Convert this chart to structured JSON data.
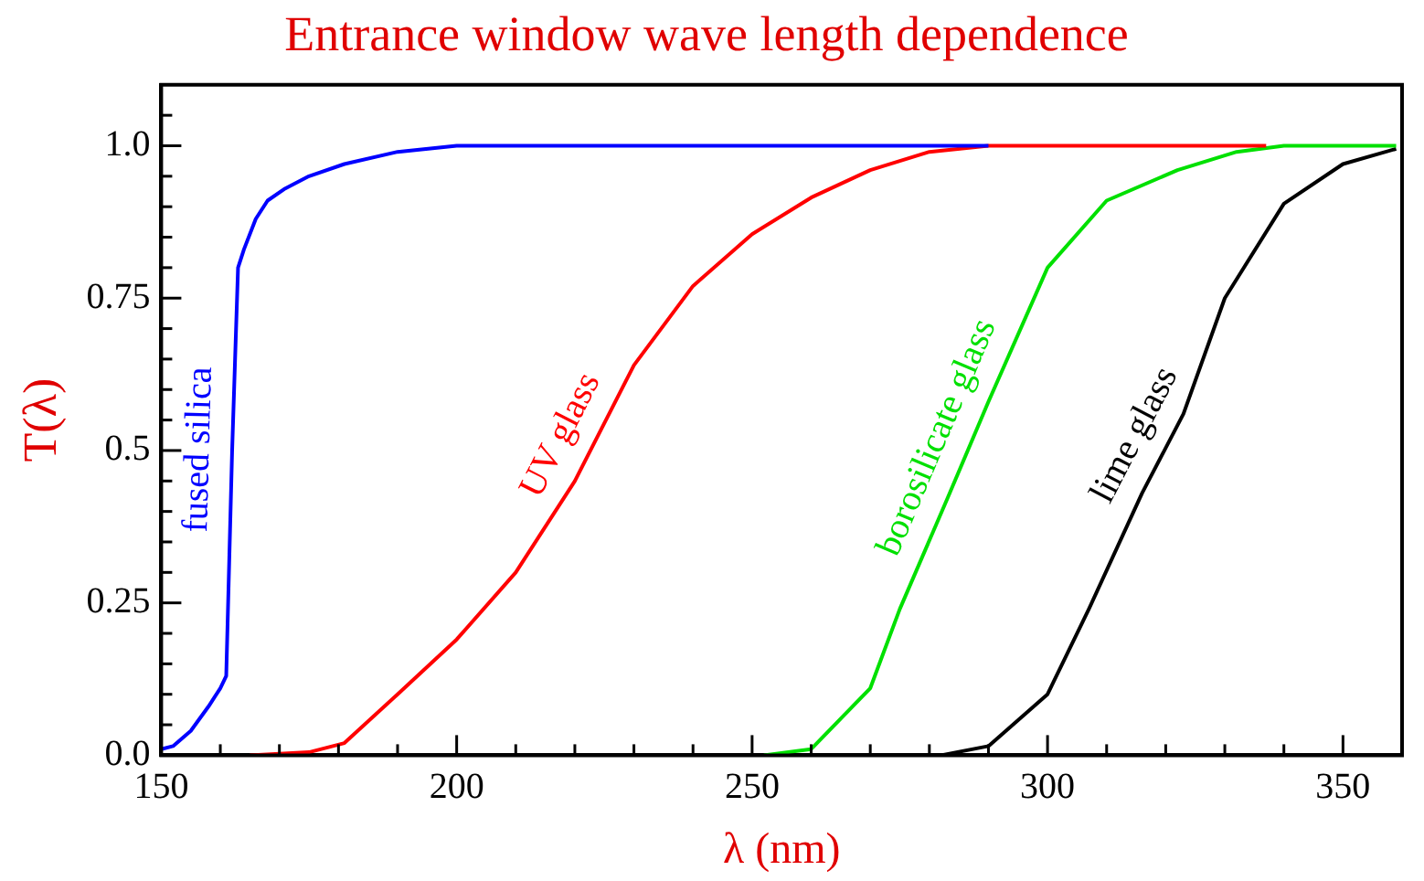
{
  "chart_data": {
    "type": "line",
    "title": "Entrance window wave length dependence",
    "xlabel": "λ (nm)",
    "ylabel": "T(λ)",
    "xlim": [
      150,
      360
    ],
    "ylim": [
      0,
      1.1
    ],
    "xticks": [
      150,
      {
        "value": 160,
        "label": null
      },
      {
        "value": 170,
        "label": null
      },
      {
        "value": 180,
        "label": null
      },
      {
        "value": 190,
        "label": null
      },
      200,
      {
        "value": 210,
        "label": null
      },
      {
        "value": 220,
        "label": null
      },
      {
        "value": 230,
        "label": null
      },
      {
        "value": 240,
        "label": null
      },
      250,
      {
        "value": 260,
        "label": null
      },
      {
        "value": 270,
        "label": null
      },
      {
        "value": 280,
        "label": null
      },
      {
        "value": 290,
        "label": null
      },
      300,
      {
        "value": 310,
        "label": null
      },
      {
        "value": 320,
        "label": null
      },
      {
        "value": 330,
        "label": null
      },
      {
        "value": 340,
        "label": null
      },
      350
    ],
    "yticks": [
      {
        "value": 0,
        "label": "0.0"
      },
      {
        "value": 0.05,
        "label": null
      },
      {
        "value": 0.1,
        "label": null
      },
      {
        "value": 0.15,
        "label": null
      },
      {
        "value": 0.2,
        "label": null
      },
      0.25,
      {
        "value": 0.3,
        "label": null
      },
      {
        "value": 0.35,
        "label": null
      },
      {
        "value": 0.4,
        "label": null
      },
      {
        "value": 0.45,
        "label": null
      },
      0.5,
      {
        "value": 0.55,
        "label": null
      },
      {
        "value": 0.6,
        "label": null
      },
      {
        "value": 0.65,
        "label": null
      },
      {
        "value": 0.7,
        "label": null
      },
      0.75,
      {
        "value": 0.8,
        "label": null
      },
      {
        "value": 0.85,
        "label": null
      },
      {
        "value": 0.9,
        "label": null
      },
      {
        "value": 0.95,
        "label": null
      },
      {
        "value": 1,
        "label": "1.0"
      },
      {
        "value": 1.05,
        "label": null
      }
    ],
    "grid": false,
    "legend": false,
    "marker": "none",
    "line_style": "solid",
    "series": [
      {
        "name": "fused silica",
        "color": "#0000ff",
        "x": [
          150,
          152,
          155,
          158,
          160,
          161,
          162,
          163,
          164,
          166,
          168,
          171,
          175,
          181,
          190,
          200,
          290
        ],
        "values": [
          0.01,
          0.015,
          0.04,
          0.08,
          0.11,
          0.13,
          0.5,
          0.8,
          0.83,
          0.88,
          0.91,
          0.93,
          0.95,
          0.97,
          0.99,
          1.0,
          1.0
        ]
      },
      {
        "name": "UV glass",
        "color": "#ff0000",
        "x": [
          165,
          175,
          181,
          190,
          200,
          210,
          220,
          230,
          240,
          250,
          260,
          270,
          280,
          290,
          337
        ],
        "values": [
          0,
          0.005,
          0.02,
          0.1,
          0.19,
          0.3,
          0.45,
          0.64,
          0.77,
          0.855,
          0.915,
          0.96,
          0.99,
          1.0,
          1.0
        ]
      },
      {
        "name": "borosilicate glass",
        "color": "#00e000",
        "x": [
          252,
          260,
          270,
          275,
          283,
          290,
          300,
          310,
          322,
          332,
          340,
          359
        ],
        "values": [
          0,
          0.01,
          0.11,
          0.24,
          0.42,
          0.58,
          0.8,
          0.91,
          0.96,
          0.99,
          1.0,
          1.0
        ]
      },
      {
        "name": "lime glass",
        "color": "#000000",
        "x": [
          282,
          290,
          300,
          307,
          316,
          323,
          330,
          340,
          350,
          359
        ],
        "values": [
          0,
          0.015,
          0.1,
          0.24,
          0.43,
          0.56,
          0.75,
          0.905,
          0.97,
          0.995
        ]
      }
    ]
  }
}
